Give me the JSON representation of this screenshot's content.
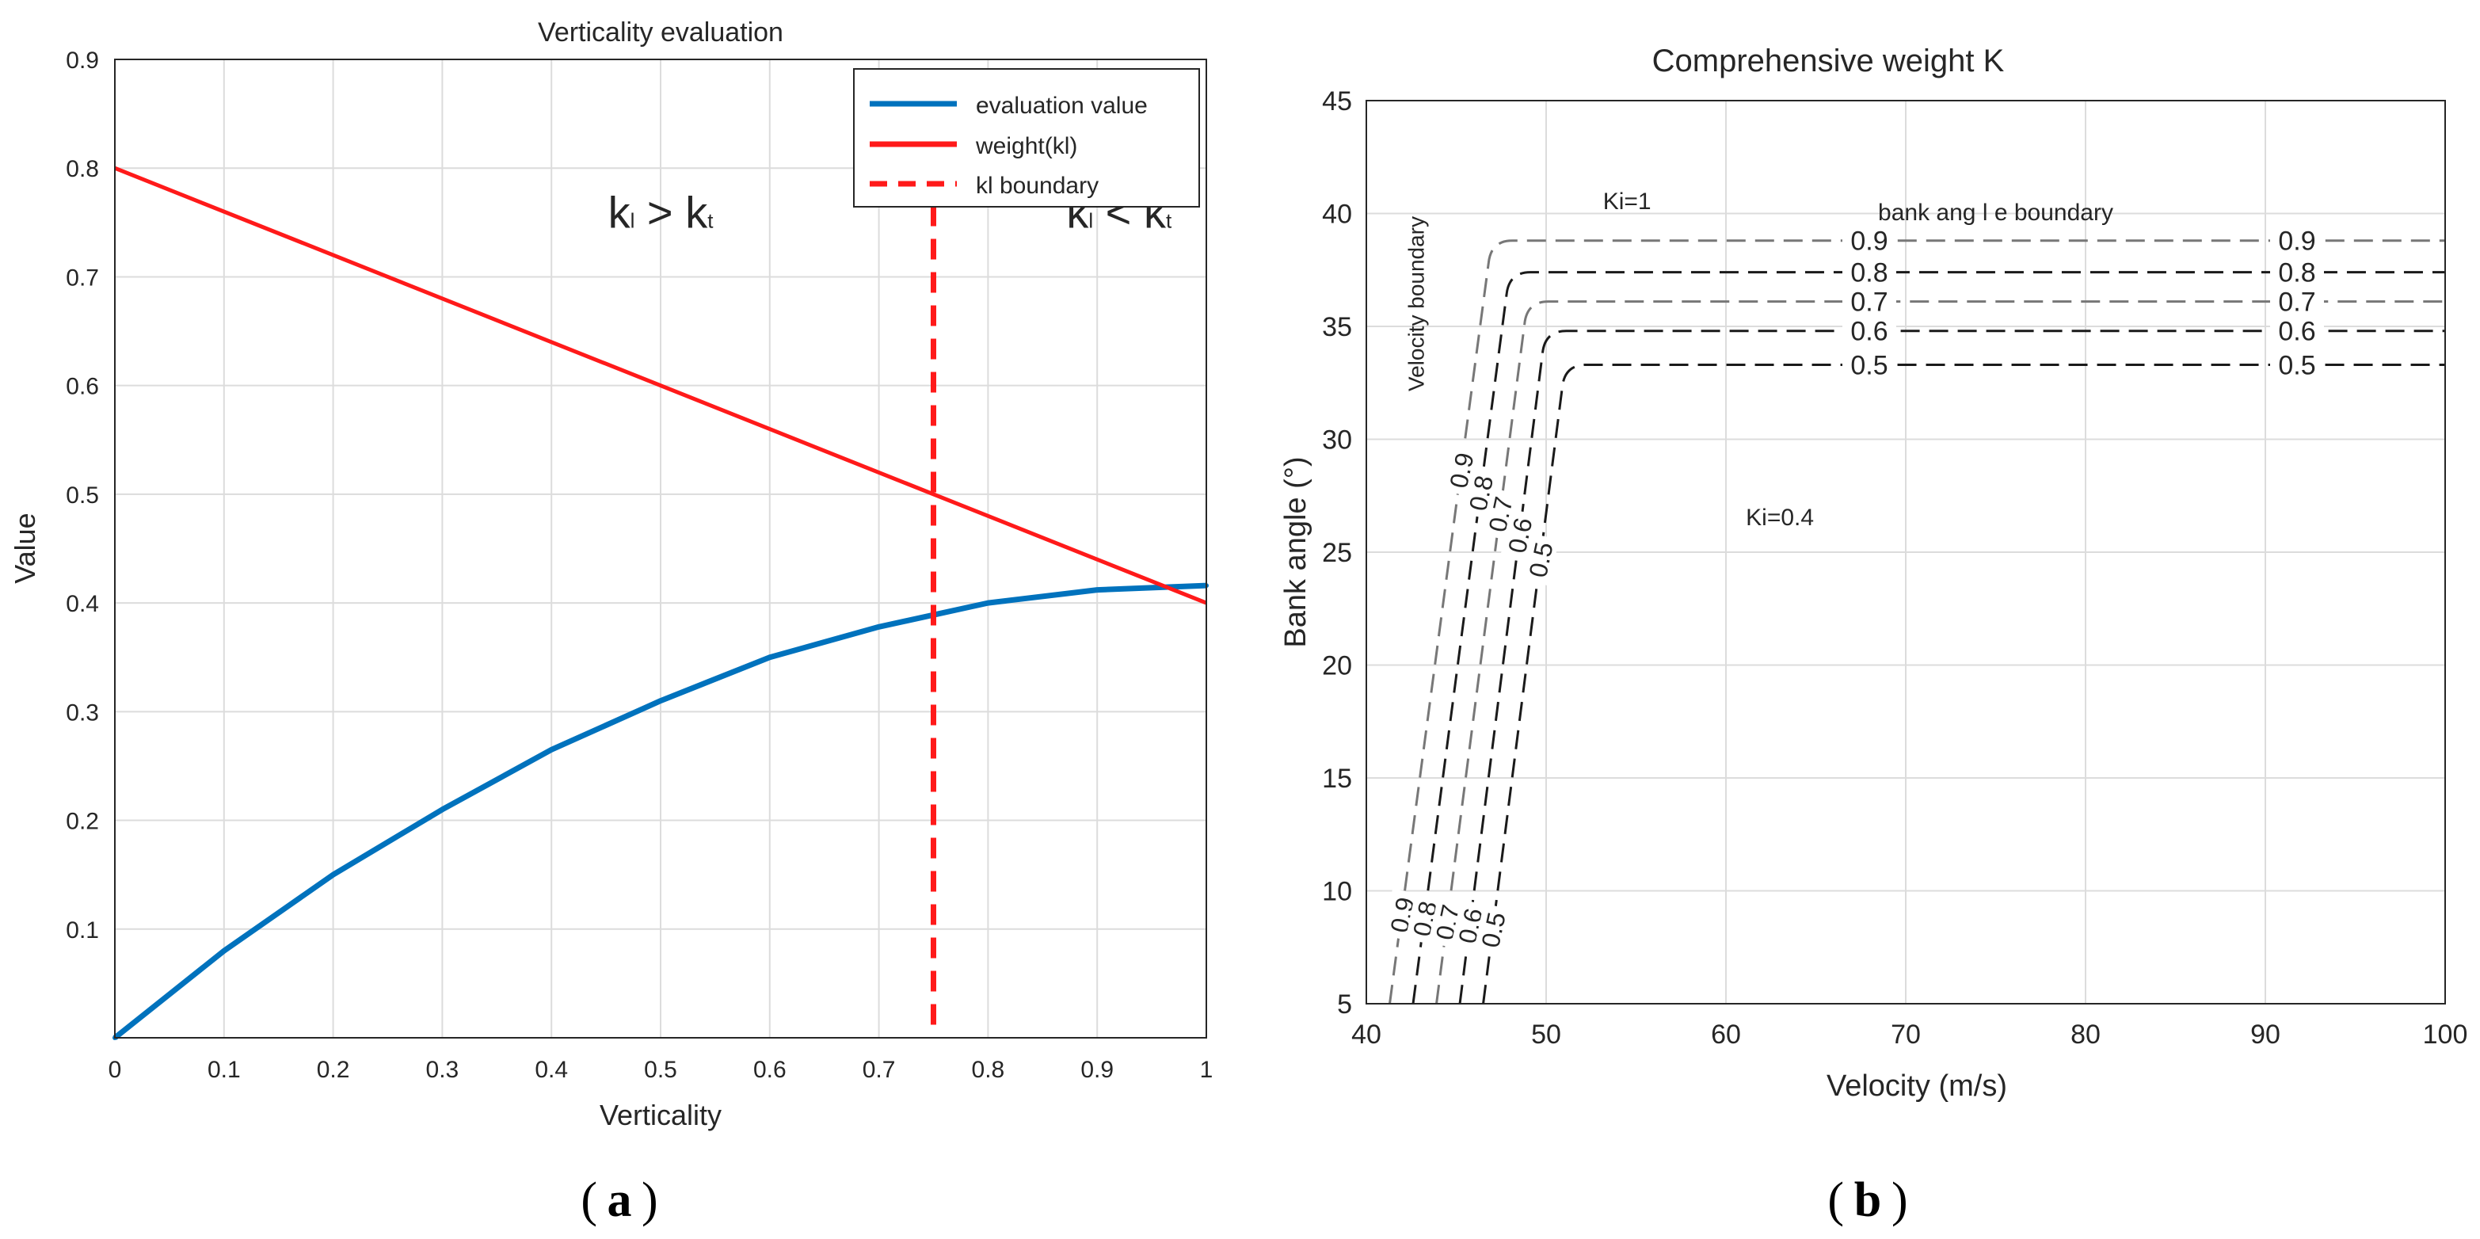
{
  "colors": {
    "blue": "#0072BD",
    "red": "#FF1A1A",
    "grid": "#DCDCDC",
    "contour": "#1A1A1A",
    "contour_grey": "#777777"
  },
  "captions": {
    "a": "a",
    "b": "b"
  },
  "chart_data": [
    {
      "type": "line",
      "title": "Verticality evaluation",
      "xlabel": "Verticality",
      "ylabel": "Value",
      "xlim": [
        0,
        1
      ],
      "ylim": [
        0,
        0.9
      ],
      "grid": true,
      "legend_position": "top-right",
      "x_ticks": [
        0,
        0.1,
        0.2,
        0.3,
        0.4,
        0.5,
        0.6,
        0.7,
        0.8,
        0.9,
        1
      ],
      "x_tick_labels": [
        "0",
        "0.1",
        "0.2",
        "0.3",
        "0.4",
        "0.5",
        "0.6",
        "0.7",
        "0.8",
        "0.9",
        "1"
      ],
      "y_ticks": [
        0.1,
        0.2,
        0.3,
        0.4,
        0.5,
        0.6,
        0.7,
        0.8,
        0.9
      ],
      "y_tick_labels": [
        "0.1",
        "0.2",
        "0.3",
        "0.4",
        "0.5",
        "0.6",
        "0.7",
        "0.8",
        "0.9"
      ],
      "series": [
        {
          "name": "evaluation value",
          "x": [
            0,
            0.1,
            0.2,
            0.3,
            0.4,
            0.5,
            0.6,
            0.7,
            0.8,
            0.9,
            1
          ],
          "values": [
            0,
            0.08,
            0.15,
            0.21,
            0.265,
            0.31,
            0.35,
            0.378,
            0.4,
            0.412,
            0.416
          ]
        },
        {
          "name": "weight(kl)",
          "x": [
            0,
            1
          ],
          "values": [
            0.8,
            0.4
          ]
        },
        {
          "name": "kl boundary",
          "x": [
            0.75,
            0.75
          ],
          "values": [
            0.012,
            0.78
          ]
        }
      ],
      "annotations": [
        {
          "main1": "k",
          "sub1": "l",
          "op": " > ",
          "main2": "k",
          "sub2": "t",
          "x": 0.5,
          "y": 0.745
        },
        {
          "main1": "k",
          "sub1": "l",
          "op": " < ",
          "main2": "k",
          "sub2": "t",
          "x": 0.92,
          "y": 0.745
        }
      ]
    },
    {
      "type": "contour",
      "title": "Comprehensive weight K",
      "xlabel": "Velocity (m/s)",
      "ylabel": "Bank angle (°)",
      "xlim": [
        40,
        100
      ],
      "ylim": [
        5,
        45
      ],
      "grid": true,
      "x_ticks": [
        40,
        50,
        60,
        70,
        80,
        90,
        100
      ],
      "x_tick_labels": [
        "40",
        "50",
        "60",
        "70",
        "80",
        "90",
        "100"
      ],
      "y_ticks": [
        5,
        10,
        15,
        20,
        25,
        30,
        35,
        40,
        45
      ],
      "y_tick_labels": [
        "5",
        "10",
        "15",
        "20",
        "25",
        "30",
        "35",
        "40",
        "45"
      ],
      "levels": [
        {
          "level": "0.9",
          "v_low": 41.3,
          "v_high": 46.8,
          "bank": 38.8,
          "color": "grey"
        },
        {
          "level": "0.8",
          "v_low": 42.6,
          "v_high": 47.8,
          "bank": 37.4,
          "color": "dark"
        },
        {
          "level": "0.7",
          "v_low": 43.9,
          "v_high": 48.8,
          "bank": 36.1,
          "color": "grey"
        },
        {
          "level": "0.6",
          "v_low": 45.2,
          "v_high": 49.8,
          "bank": 34.8,
          "color": "dark"
        },
        {
          "level": "0.5",
          "v_low": 46.5,
          "v_high": 50.9,
          "bank": 33.3,
          "color": "dark"
        }
      ],
      "annotations": [
        {
          "text": "Ki=1",
          "x": 54.5,
          "y": 40.2
        },
        {
          "text": "bank   ang l e boundary",
          "x": 75,
          "y": 39.7
        },
        {
          "text": "Velocity boundary",
          "x": 43.2,
          "y": 36,
          "rotate": -90
        },
        {
          "text": "Ki=0.4",
          "x": 63,
          "y": 26.2
        }
      ]
    }
  ]
}
